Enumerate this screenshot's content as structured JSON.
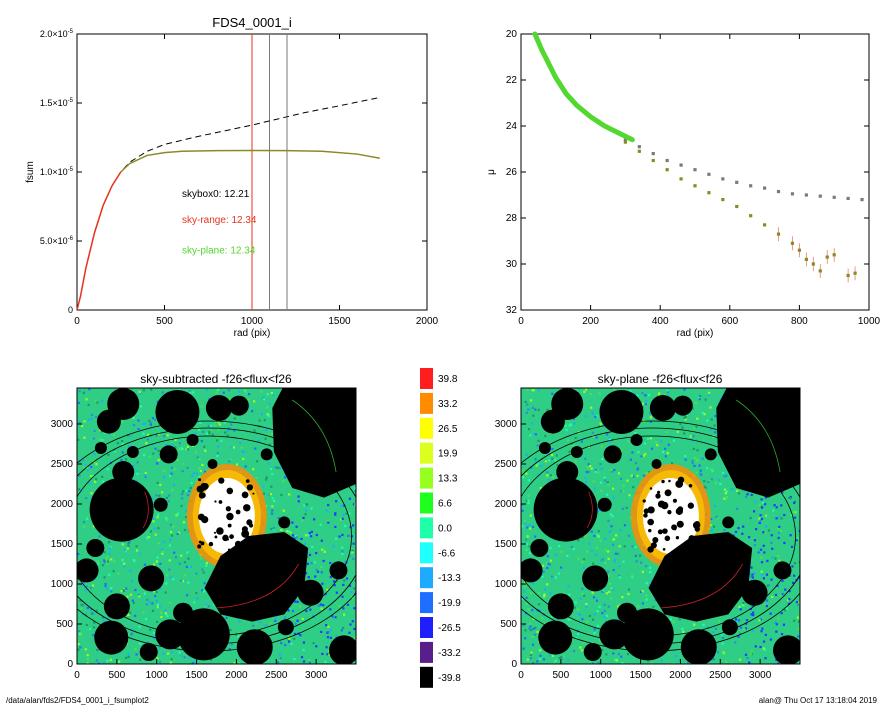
{
  "footer": {
    "path": "/data/alan/fds2/FDS4_0001_i_fsumplot2",
    "stamp": "alan@  Thu Oct 17 13:18:04 2019"
  },
  "colors": {
    "red": "#e8321e",
    "olive": "#8c8a22",
    "green": "#52d82e",
    "gray": "#7a7a7a"
  },
  "chart_data": [
    {
      "type": "line",
      "title": "FDS4_0001_i",
      "xlabel": "rad (pix)",
      "ylabel": "fsum",
      "xlim": [
        0,
        2000
      ],
      "ylim": [
        0,
        2e-05
      ],
      "xticks": [
        "0",
        "500",
        "1000",
        "1500",
        "2000"
      ],
      "yticks": [
        {
          "v": 0,
          "mant": "0",
          "exp": ""
        },
        {
          "v": 5e-06,
          "mant": "5.0×10",
          "exp": "-6"
        },
        {
          "v": 1e-05,
          "mant": "1.0×10",
          "exp": "-5"
        },
        {
          "v": 1.5e-05,
          "mant": "1.5×10",
          "exp": "-5"
        },
        {
          "v": 2e-05,
          "mant": "2.0×10",
          "exp": "-5"
        }
      ],
      "vlines": [
        {
          "x": 1000,
          "color": "red"
        },
        {
          "x": 1100,
          "color": "gray"
        },
        {
          "x": 1200,
          "color": "gray"
        }
      ],
      "annotations": [
        {
          "text": "skybox0: 12.21",
          "color": "black",
          "x": 600,
          "y": 8.2e-06
        },
        {
          "text": "sky-range: 12.34",
          "color": "red",
          "x": 600,
          "y": 6.3e-06
        },
        {
          "text": "sky-plane: 12.34",
          "color": "green",
          "x": 600,
          "y": 4.1e-06
        }
      ],
      "series": [
        {
          "style": "dashed",
          "color": "black",
          "x": [
            0,
            20,
            50,
            100,
            150,
            200,
            250,
            300,
            400,
            500,
            700,
            1000,
            1300,
            1500,
            1730
          ],
          "y": [
            0,
            1e-06,
            3e-06,
            5.6e-06,
            7.6e-06,
            9e-06,
            1e-05,
            1.07e-05,
            1.15e-05,
            1.2e-05,
            1.26e-05,
            1.34e-05,
            1.43e-05,
            1.48e-05,
            1.54e-05
          ]
        },
        {
          "style": "solid",
          "color": "olive",
          "x": [
            250,
            300,
            400,
            500,
            600,
            800,
            1000,
            1200,
            1400,
            1600,
            1730
          ],
          "y": [
            1e-05,
            1.06e-05,
            1.12e-05,
            1.14e-05,
            1.15e-05,
            1.155e-05,
            1.156e-05,
            1.155e-05,
            1.15e-05,
            1.13e-05,
            1.1e-05
          ]
        },
        {
          "style": "solid",
          "color": "red",
          "x": [
            0,
            20,
            50,
            100,
            150,
            200,
            250
          ],
          "y": [
            0,
            1e-06,
            3e-06,
            5.6e-06,
            7.6e-06,
            9e-06,
            1e-05
          ]
        }
      ]
    },
    {
      "type": "scatter",
      "title": "",
      "xlabel": "rad (pix)",
      "ylabel": "μ",
      "xlim": [
        0,
        1000
      ],
      "ylim": [
        32,
        20
      ],
      "xticks": [
        "0",
        "200",
        "400",
        "600",
        "800",
        "1000"
      ],
      "yticks": [
        "20",
        "22",
        "24",
        "26",
        "28",
        "30",
        "32"
      ],
      "series": [
        {
          "name": "",
          "color": "gray",
          "marker": "square",
          "x": [
            300,
            340,
            380,
            420,
            460,
            500,
            540,
            580,
            620,
            660,
            700,
            740,
            780,
            820,
            860,
            900,
            940,
            980
          ],
          "y": [
            24.6,
            24.9,
            25.2,
            25.5,
            25.7,
            25.9,
            26.1,
            26.3,
            26.45,
            26.6,
            26.7,
            26.85,
            26.95,
            27.0,
            27.05,
            27.1,
            27.15,
            27.2
          ]
        },
        {
          "name": "",
          "color": "olive",
          "marker": "square",
          "x": [
            300,
            340,
            380,
            420,
            460,
            500,
            540,
            580,
            620,
            660,
            700,
            740,
            780,
            800,
            820,
            840,
            860,
            880,
            900,
            940,
            960
          ],
          "y": [
            24.7,
            25.1,
            25.5,
            25.9,
            26.3,
            26.6,
            26.9,
            27.2,
            27.5,
            27.9,
            28.3,
            28.7,
            29.1,
            29.4,
            29.8,
            30.0,
            30.3,
            29.7,
            29.6,
            30.5,
            30.4
          ]
        },
        {
          "name": "",
          "color": "green",
          "marker": "dense",
          "x": [
            40,
            60,
            80,
            100,
            130,
            160,
            200,
            240,
            280,
            320
          ],
          "y": [
            20.0,
            20.7,
            21.3,
            21.9,
            22.6,
            23.1,
            23.6,
            24.0,
            24.3,
            24.6
          ]
        }
      ]
    },
    {
      "type": "heatmap",
      "title": "sky-subtracted -f26<flux<f26",
      "xticks": [
        "0",
        "500",
        "1000",
        "1500",
        "2000",
        "2500",
        "3000"
      ],
      "yticks": [
        "0",
        "500",
        "1000",
        "1500",
        "2000",
        "2500",
        "3000"
      ],
      "xlim": [
        0,
        3500
      ],
      "ylim": [
        0,
        3450
      ]
    },
    {
      "type": "heatmap",
      "title": "sky-plane -f26<flux<f26",
      "xticks": [
        "0",
        "500",
        "1000",
        "1500",
        "2000",
        "2500",
        "3000"
      ],
      "yticks": [
        "0",
        "500",
        "1000",
        "1500",
        "2000",
        "2500",
        "3000"
      ],
      "xlim": [
        0,
        3500
      ],
      "ylim": [
        0,
        3450
      ]
    }
  ],
  "colorbar": {
    "labels": [
      "39.8",
      "33.2",
      "26.5",
      "19.9",
      "13.3",
      "6.6",
      "0.0",
      "-6.6",
      "-13.3",
      "-19.9",
      "-26.5",
      "-33.2",
      "-39.8"
    ],
    "colors": [
      "#ff1e1e",
      "#ff8c00",
      "#ffff00",
      "#dcff1e",
      "#96ff1e",
      "#1eff1e",
      "#1effaa",
      "#1effff",
      "#1eaaff",
      "#1e6eff",
      "#1e1eff",
      "#5a1e8c",
      "#000000"
    ]
  }
}
